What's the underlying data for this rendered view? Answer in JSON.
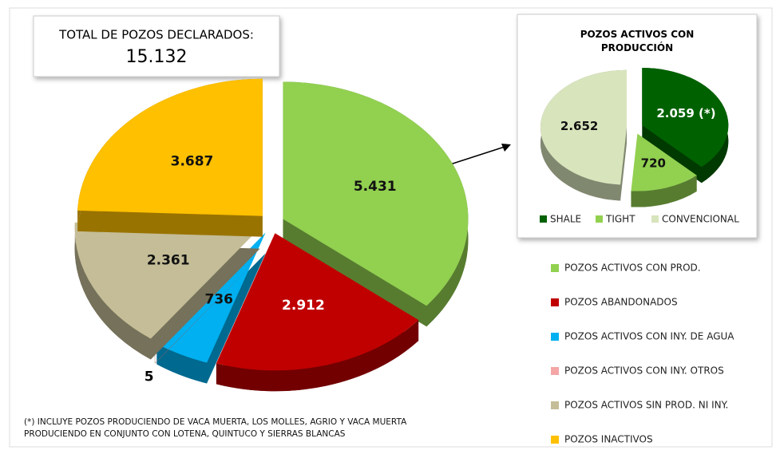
{
  "chart_data": [
    {
      "type": "pie",
      "title": "TOTAL DE POZOS DECLARADOS:",
      "total": {
        "value": 15132,
        "label": "15.132"
      },
      "categories": [
        "POZOS ACTIVOS CON PROD.",
        "POZOS ABANDONADOS",
        "POZOS ACTIVOS CON INY. DE AGUA",
        "POZOS ACTIVOS CON INY. OTROS",
        "POZOS ACTIVOS SIN PROD. NI INY.",
        "POZOS INACTIVOS"
      ],
      "values": [
        5431,
        2912,
        736,
        5,
        2361,
        3687
      ],
      "value_labels": [
        "5.431",
        "2.912",
        "736",
        "5",
        "2.361",
        "3.687"
      ],
      "colors": [
        "#92d050",
        "#c00000",
        "#00b0f0",
        "#f4a6a6",
        "#c4bd97",
        "#ffc000"
      ],
      "note": "(*) INCLUYE POZOS PRODUCIENDO DE VACA MUERTA, LOS MOLLES, AGRIO Y VACA MUERTA PRODUCIENDO EN CONJUNTO CON LOTENA, QUINTUCO Y SIERRAS BLANCAS"
    },
    {
      "type": "pie",
      "title": "POZOS ACTIVOS CON PRODUCCIÓN",
      "categories": [
        "SHALE",
        "TIGHT",
        "CONVENCIONAL"
      ],
      "values": [
        2059,
        720,
        2652
      ],
      "value_labels": [
        "2.059 (*)",
        "720",
        "2.652"
      ],
      "colors": [
        "#006100",
        "#92d050",
        "#d8e4bc"
      ]
    }
  ]
}
